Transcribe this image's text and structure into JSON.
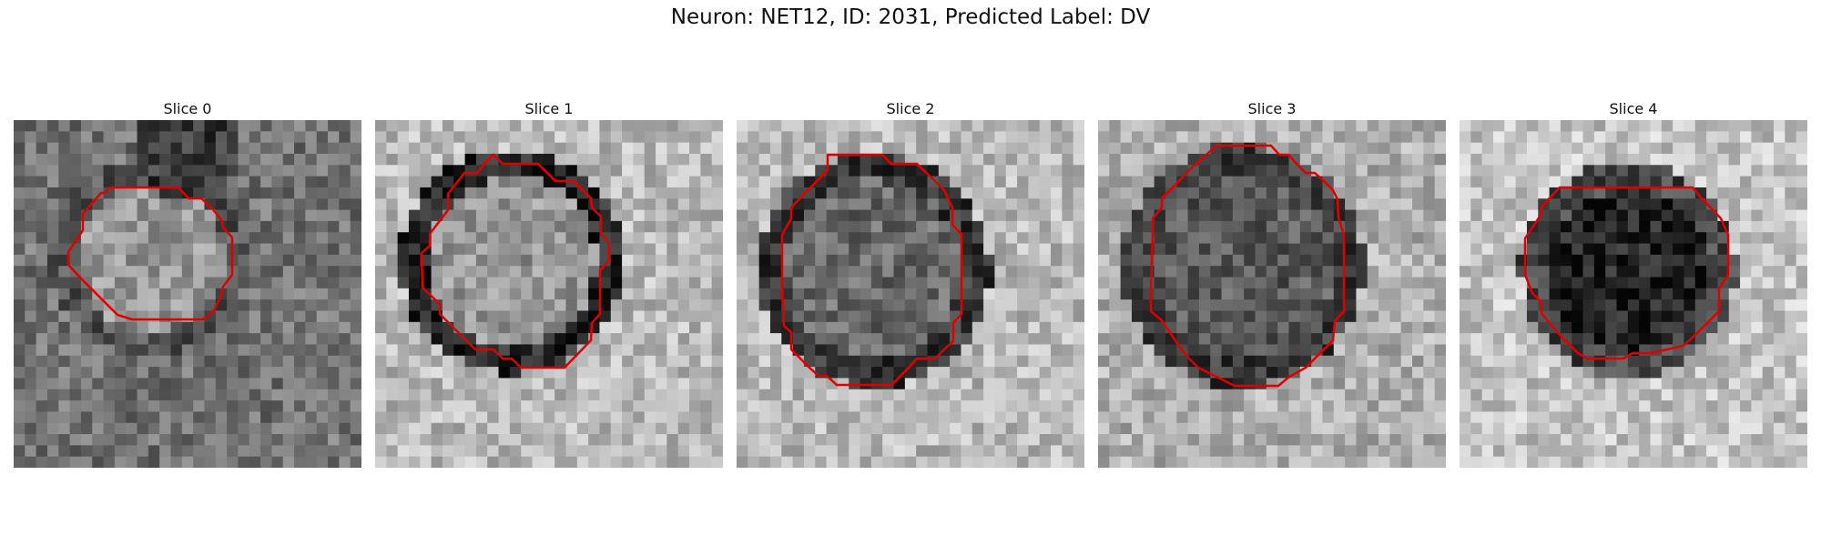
{
  "figure": {
    "title": "Neuron: NET12, ID: 2031, Predicted Label: DV"
  },
  "panels": [
    {
      "title": "Slice 0"
    },
    {
      "title": "Slice 1"
    },
    {
      "title": "Slice 2"
    },
    {
      "title": "Slice 3"
    },
    {
      "title": "Slice 4"
    }
  ],
  "colors": {
    "contour": "#e00000",
    "background": "#ffffff"
  }
}
